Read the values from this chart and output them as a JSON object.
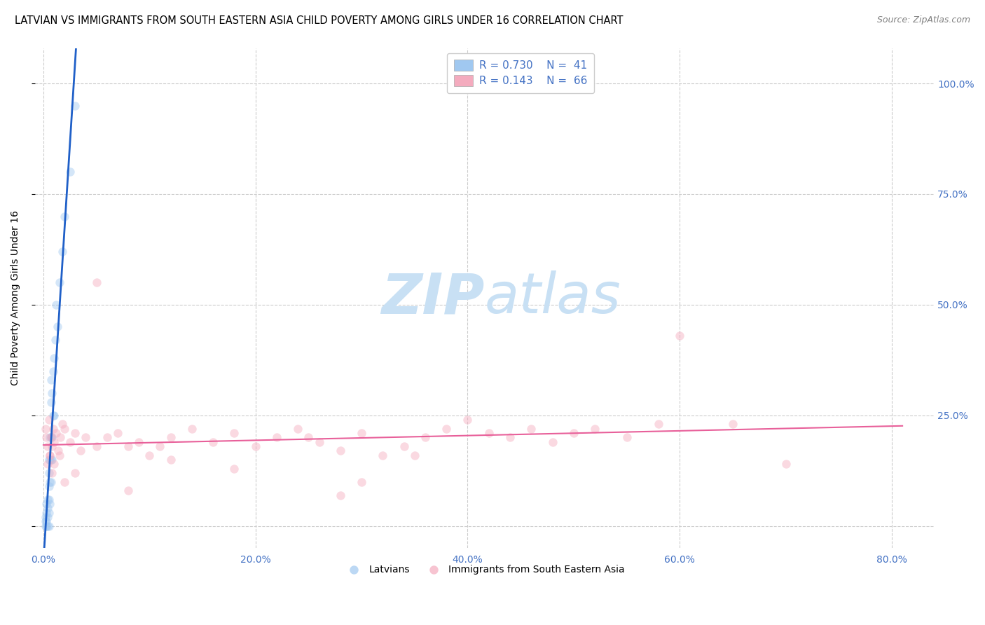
{
  "title": "LATVIAN VS IMMIGRANTS FROM SOUTH EASTERN ASIA CHILD POVERTY AMONG GIRLS UNDER 16 CORRELATION CHART",
  "source": "Source: ZipAtlas.com",
  "ylabel": "Child Poverty Among Girls Under 16",
  "ytick_labels": [
    "",
    "25.0%",
    "50.0%",
    "75.0%",
    "100.0%"
  ],
  "ytick_vals": [
    0.0,
    0.25,
    0.5,
    0.75,
    1.0
  ],
  "xtick_vals": [
    0.0,
    0.2,
    0.4,
    0.6,
    0.8
  ],
  "xlim": [
    -0.008,
    0.84
  ],
  "ylim": [
    -0.05,
    1.08
  ],
  "legend_r1": "0.730",
  "legend_n1": "41",
  "legend_r2": "0.143",
  "legend_n2": "66",
  "color_latvian": "#A0C8F0",
  "color_immigrant": "#F4ABBE",
  "color_latvian_line": "#2060C8",
  "color_immigrant_line": "#E8609A",
  "color_axis": "#4472C4",
  "watermark_color": "#C8E0F4",
  "latvian_x": [
    0.002,
    0.002,
    0.002,
    0.003,
    0.003,
    0.003,
    0.003,
    0.004,
    0.004,
    0.004,
    0.004,
    0.005,
    0.005,
    0.005,
    0.005,
    0.005,
    0.005,
    0.006,
    0.006,
    0.006,
    0.006,
    0.007,
    0.007,
    0.007,
    0.007,
    0.007,
    0.008,
    0.008,
    0.008,
    0.009,
    0.009,
    0.01,
    0.01,
    0.011,
    0.012,
    0.013,
    0.015,
    0.018,
    0.02,
    0.025,
    0.03
  ],
  "latvian_y": [
    0.0,
    0.01,
    0.02,
    0.0,
    0.01,
    0.03,
    0.05,
    0.0,
    0.02,
    0.04,
    0.06,
    0.0,
    0.03,
    0.06,
    0.09,
    0.12,
    0.15,
    0.05,
    0.1,
    0.15,
    0.2,
    0.1,
    0.15,
    0.2,
    0.28,
    0.33,
    0.15,
    0.2,
    0.3,
    0.25,
    0.35,
    0.25,
    0.38,
    0.42,
    0.5,
    0.45,
    0.55,
    0.62,
    0.7,
    0.8,
    0.95
  ],
  "immigrant_x": [
    0.002,
    0.003,
    0.004,
    0.005,
    0.006,
    0.007,
    0.008,
    0.009,
    0.01,
    0.012,
    0.014,
    0.016,
    0.018,
    0.02,
    0.025,
    0.03,
    0.035,
    0.04,
    0.05,
    0.06,
    0.07,
    0.08,
    0.09,
    0.1,
    0.11,
    0.12,
    0.14,
    0.16,
    0.18,
    0.2,
    0.22,
    0.24,
    0.26,
    0.28,
    0.3,
    0.32,
    0.34,
    0.36,
    0.38,
    0.4,
    0.42,
    0.44,
    0.46,
    0.48,
    0.5,
    0.52,
    0.55,
    0.58,
    0.004,
    0.006,
    0.008,
    0.01,
    0.015,
    0.02,
    0.03,
    0.05,
    0.08,
    0.12,
    0.18,
    0.25,
    0.3,
    0.35,
    0.28,
    0.6,
    0.65,
    0.7
  ],
  "immigrant_y": [
    0.22,
    0.2,
    0.18,
    0.24,
    0.16,
    0.2,
    0.18,
    0.22,
    0.19,
    0.21,
    0.17,
    0.2,
    0.23,
    0.22,
    0.19,
    0.21,
    0.17,
    0.2,
    0.18,
    0.2,
    0.21,
    0.18,
    0.19,
    0.16,
    0.18,
    0.2,
    0.22,
    0.19,
    0.21,
    0.18,
    0.2,
    0.22,
    0.19,
    0.17,
    0.21,
    0.16,
    0.18,
    0.2,
    0.22,
    0.24,
    0.21,
    0.2,
    0.22,
    0.19,
    0.21,
    0.22,
    0.2,
    0.23,
    0.14,
    0.16,
    0.12,
    0.14,
    0.16,
    0.1,
    0.12,
    0.55,
    0.08,
    0.15,
    0.13,
    0.2,
    0.1,
    0.16,
    0.07,
    0.43,
    0.23,
    0.14
  ],
  "marker_size": 80,
  "marker_alpha": 0.45,
  "title_fontsize": 10.5,
  "label_fontsize": 10,
  "tick_fontsize": 10,
  "legend_fontsize": 11
}
